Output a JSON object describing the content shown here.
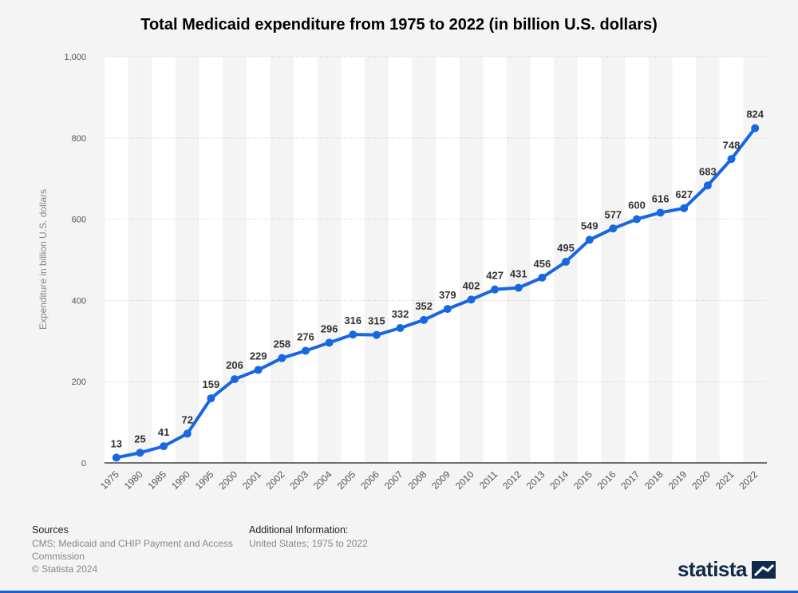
{
  "title": "Total Medicaid expenditure from 1975 to 2022 (in billion U.S. dollars)",
  "footer": {
    "sources_heading": "Sources",
    "sources_lines": [
      "CMS; Medicaid and CHIP Payment and Access",
      "Commission",
      "© Statista 2024"
    ],
    "additional_heading": "Additional Information:",
    "additional_text": "United States; 1975 to 2022"
  },
  "brand": {
    "name": "statista"
  },
  "colors": {
    "line": "#1667e0",
    "grid": "#c8c8c8",
    "band": "#ffffff",
    "background": "#f4f4f4"
  },
  "chart_data": {
    "type": "line",
    "title": "Total Medicaid expenditure from 1975 to 2022 (in billion U.S. dollars)",
    "xlabel": "",
    "ylabel": "Expenditure in billion U.S. dollars",
    "ylim": [
      0,
      1000
    ],
    "yticks": [
      "0",
      "200",
      "400",
      "600",
      "800",
      "1,000"
    ],
    "ytick_values": [
      0,
      200,
      400,
      600,
      800,
      1000
    ],
    "grid": true,
    "categories": [
      "1975",
      "1980",
      "1985",
      "1990",
      "1995",
      "2000",
      "2001",
      "2002",
      "2003",
      "2004",
      "2005",
      "2006",
      "2007",
      "2008",
      "2009",
      "2010",
      "2011",
      "2012",
      "2013",
      "2014",
      "2015",
      "2016",
      "2017",
      "2018",
      "2019",
      "2020",
      "2021",
      "2022"
    ],
    "values": [
      13,
      25,
      41,
      72,
      159,
      206,
      229,
      258,
      276,
      296,
      316,
      315,
      332,
      352,
      379,
      402,
      427,
      431,
      456,
      495,
      549,
      577,
      600,
      616,
      627,
      683,
      748,
      824
    ]
  }
}
